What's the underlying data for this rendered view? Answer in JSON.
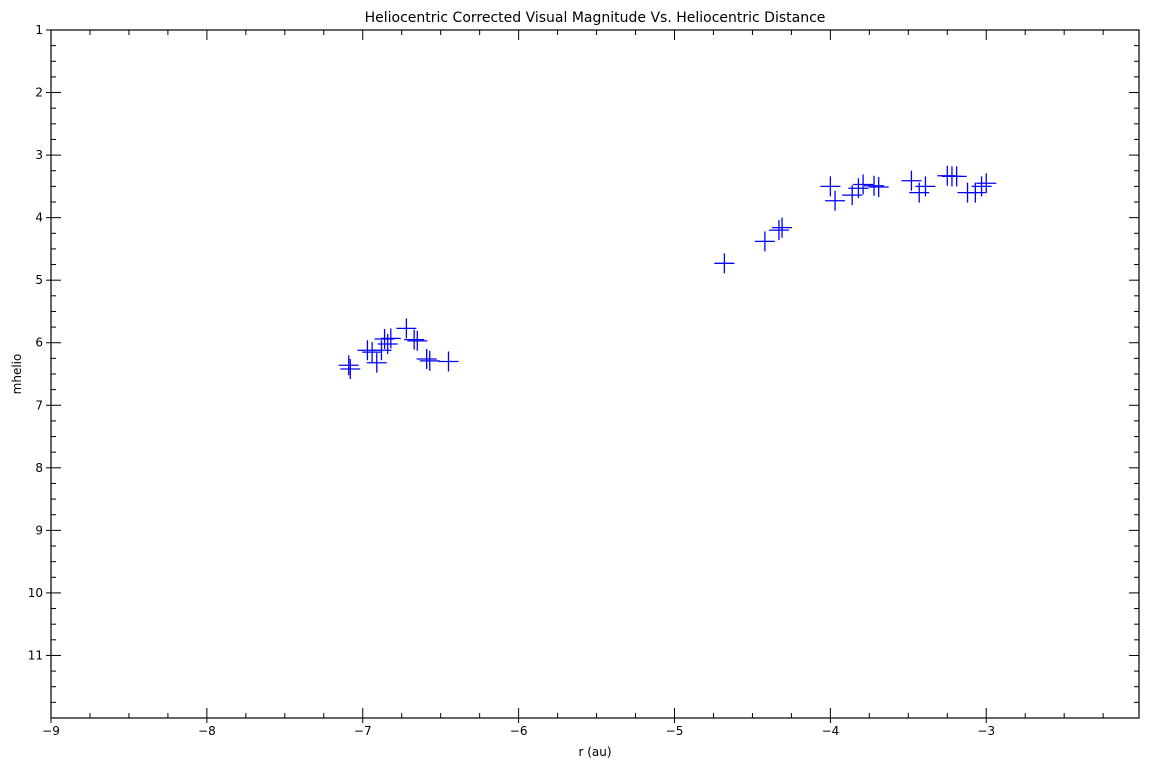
{
  "chart_data": {
    "type": "scatter",
    "title": "Heliocentric Corrected Visual Magnitude Vs. Heliocentric Distance",
    "xlabel": "r (au)",
    "ylabel": "mhelio",
    "xlim": [
      -9,
      -2.02
    ],
    "ylim": [
      12,
      1
    ],
    "y_inverted": true,
    "x_ticks": [
      -9,
      -8,
      -7,
      -6,
      -5,
      -4,
      -3
    ],
    "x_tick_labels": [
      "−9",
      "−8",
      "−7",
      "−6",
      "−5",
      "−4",
      "−3"
    ],
    "y_ticks": [
      1,
      2,
      3,
      4,
      5,
      6,
      7,
      8,
      9,
      10,
      11
    ],
    "y_tick_labels": [
      "1",
      "2",
      "3",
      "4",
      "5",
      "6",
      "7",
      "8",
      "9",
      "10",
      "11"
    ],
    "marker": "plus",
    "color": "#0000ff",
    "grid": false,
    "points": [
      {
        "x": -7.09,
        "y": 6.36
      },
      {
        "x": -7.08,
        "y": 6.42
      },
      {
        "x": -6.97,
        "y": 6.12
      },
      {
        "x": -6.94,
        "y": 6.15
      },
      {
        "x": -6.91,
        "y": 6.32
      },
      {
        "x": -6.88,
        "y": 6.12
      },
      {
        "x": -6.86,
        "y": 5.94
      },
      {
        "x": -6.84,
        "y": 6.02
      },
      {
        "x": -6.82,
        "y": 5.93
      },
      {
        "x": -6.72,
        "y": 5.77
      },
      {
        "x": -6.67,
        "y": 5.95
      },
      {
        "x": -6.65,
        "y": 5.97
      },
      {
        "x": -6.59,
        "y": 6.26
      },
      {
        "x": -6.57,
        "y": 6.29
      },
      {
        "x": -6.45,
        "y": 6.3
      },
      {
        "x": -4.68,
        "y": 4.73
      },
      {
        "x": -4.42,
        "y": 4.38
      },
      {
        "x": -4.33,
        "y": 4.2
      },
      {
        "x": -4.31,
        "y": 4.16
      },
      {
        "x": -4.0,
        "y": 3.5
      },
      {
        "x": -3.97,
        "y": 3.73
      },
      {
        "x": -3.86,
        "y": 3.64
      },
      {
        "x": -3.82,
        "y": 3.53
      },
      {
        "x": -3.79,
        "y": 3.47
      },
      {
        "x": -3.72,
        "y": 3.49
      },
      {
        "x": -3.69,
        "y": 3.51
      },
      {
        "x": -3.48,
        "y": 3.41
      },
      {
        "x": -3.43,
        "y": 3.6
      },
      {
        "x": -3.39,
        "y": 3.5
      },
      {
        "x": -3.25,
        "y": 3.33
      },
      {
        "x": -3.22,
        "y": 3.34
      },
      {
        "x": -3.19,
        "y": 3.34
      },
      {
        "x": -3.12,
        "y": 3.6
      },
      {
        "x": -3.07,
        "y": 3.6
      },
      {
        "x": -3.03,
        "y": 3.5
      },
      {
        "x": -3.0,
        "y": 3.45
      }
    ]
  }
}
